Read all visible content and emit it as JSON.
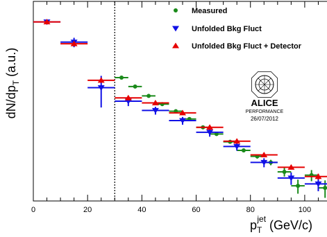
{
  "chart_data": {
    "type": "scatter",
    "ylabel": "dN/dp_T (a.u.)",
    "xlabel": "p_T^jet (GeV/c)",
    "xlim": [
      0,
      110
    ],
    "x_ticks": [
      0,
      20,
      40,
      60,
      80,
      100
    ],
    "y_scale": "log",
    "y_ticks_shown": false,
    "cut_line_x": 30,
    "legend_position": "top-right",
    "logo": {
      "text": "ALICE",
      "sub": "PERFORMANCE",
      "date": "26/07/2012"
    },
    "series": [
      {
        "name": "Measured",
        "color": "#1a8a1a",
        "marker": "circle",
        "x": [
          32.5,
          37.5,
          42.5,
          47.5,
          52.5,
          57.5,
          62.5,
          67.5,
          72.5,
          77.5,
          82.5,
          87.5,
          92.5,
          97.5,
          102.5,
          107.5
        ],
        "y": [
          1.15,
          0.85,
          0.62,
          0.47,
          0.37,
          0.285,
          0.215,
          0.172,
          0.132,
          0.099,
          0.081,
          0.066,
          0.048,
          0.03,
          0.043,
          0.028
        ],
        "yerr": [
          0.02,
          0.02,
          0.015,
          0.012,
          0.01,
          0.008,
          0.007,
          0.006,
          0.006,
          0.006,
          0.006,
          0.006,
          0.007,
          0.007,
          0.008,
          0.008
        ]
      },
      {
        "name": "Unfolded Bkg Fluct",
        "color": "#1010e6",
        "marker": "triangle-down",
        "x": [
          5,
          15,
          25,
          35,
          45,
          55,
          65,
          75,
          85,
          95,
          105
        ],
        "y": [
          7.5,
          3.8,
          0.82,
          0.52,
          0.38,
          0.27,
          0.182,
          0.113,
          0.066,
          0.039,
          0.032
        ],
        "yerr": [
          0.2,
          0.6,
          0.4,
          0.08,
          0.05,
          0.035,
          0.025,
          0.015,
          0.01,
          0.008,
          0.007
        ]
      },
      {
        "name": "Unfolded Bkg Fluct + Detector",
        "color": "#e60000",
        "marker": "triangle-up",
        "x": [
          5,
          15,
          25,
          35,
          45,
          55,
          65,
          75,
          85,
          95,
          105
        ],
        "y": [
          7.5,
          3.6,
          1.05,
          0.58,
          0.49,
          0.35,
          0.215,
          0.135,
          0.085,
          0.056,
          0.041
        ],
        "yerr": [
          0.1,
          0.2,
          0.08,
          0.02,
          0.02,
          0.012,
          0.01,
          0.006,
          0.005,
          0.004,
          0.004
        ]
      }
    ]
  }
}
